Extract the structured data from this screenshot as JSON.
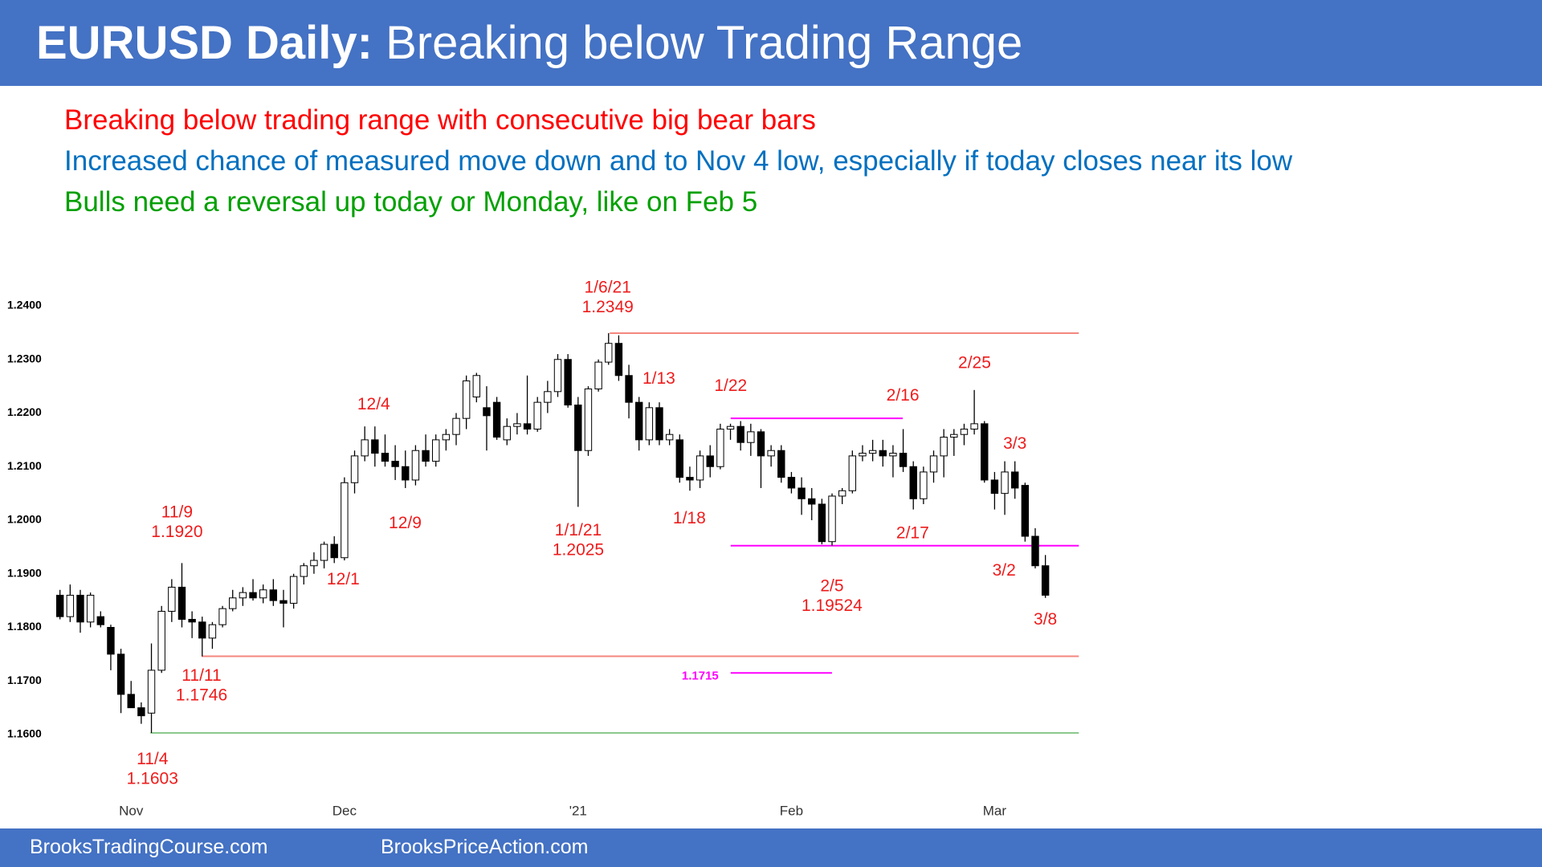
{
  "header": {
    "title_bold": "EURUSD Daily:",
    "title": "Breaking below Trading Range"
  },
  "bullets": [
    {
      "text": "Breaking below trading range with consecutive big bear bars",
      "color": "#ff0000"
    },
    {
      "text": "Increased chance of measured move down and to Nov 4 low, especially if today closes near its low",
      "color": "#0070c0"
    },
    {
      "text": "Bulls need a reversal up today or Monday, like on Feb 5",
      "color": "#00a000"
    }
  ],
  "footer": {
    "left": "BrooksTradingCourse.com",
    "right": "BrooksPriceAction.com"
  },
  "chart_data": {
    "type": "candlestick",
    "categories": [
      null,
      null,
      null,
      null,
      null,
      null,
      null,
      "Nov",
      null,
      null,
      null,
      null,
      null,
      null,
      null,
      null,
      null,
      null,
      null,
      null,
      null,
      null,
      null,
      null,
      null,
      null,
      null,
      null,
      "Dec",
      null,
      null,
      null,
      null,
      null,
      null,
      null,
      null,
      null,
      null,
      null,
      null,
      null,
      null,
      null,
      null,
      null,
      null,
      null,
      null,
      null,
      null,
      "'21",
      null,
      null,
      null,
      null,
      null,
      null,
      null,
      null,
      null,
      null,
      null,
      null,
      null,
      null,
      null,
      null,
      null,
      null,
      null,
      null,
      "Feb",
      null,
      null,
      null,
      null,
      null,
      null,
      null,
      null,
      null,
      null,
      null,
      null,
      null,
      null,
      null,
      null,
      null,
      null,
      null,
      "Mar",
      null,
      null,
      null,
      null,
      null
    ],
    "open": [
      1.186,
      1.182,
      1.186,
      1.181,
      1.182,
      1.18,
      1.175,
      1.1675,
      1.165,
      1.164,
      1.172,
      1.183,
      1.1875,
      1.1815,
      1.181,
      1.178,
      1.1805,
      1.1835,
      1.1855,
      1.1865,
      1.1855,
      1.187,
      1.185,
      1.1845,
      1.1895,
      1.1915,
      1.1925,
      1.1955,
      1.193,
      1.207,
      1.212,
      1.215,
      1.2125,
      1.211,
      1.21,
      1.2075,
      1.213,
      1.211,
      1.215,
      1.216,
      1.219,
      1.223,
      1.221,
      1.222,
      1.215,
      1.2175,
      1.218,
      1.217,
      1.222,
      1.224,
      1.23,
      1.2215,
      1.213,
      1.2245,
      1.2295,
      1.233,
      1.227,
      1.222,
      1.215,
      1.221,
      1.215,
      1.215,
      1.208,
      1.2075,
      1.212,
      1.21,
      1.217,
      1.2175,
      1.2145,
      1.2165,
      1.212,
      1.213,
      1.208,
      1.206,
      1.204,
      1.203,
      1.196,
      1.2045,
      1.2055,
      1.212,
      1.2125,
      1.213,
      1.212,
      1.2125,
      1.21,
      1.204,
      1.209,
      1.212,
      1.2155,
      1.216,
      1.217,
      1.218,
      1.2075,
      1.205,
      1.209,
      1.2065,
      1.197,
      1.1915
    ],
    "high": [
      1.187,
      1.188,
      1.187,
      1.1865,
      1.183,
      1.1805,
      1.176,
      1.17,
      1.166,
      1.177,
      1.184,
      1.189,
      1.192,
      1.183,
      1.182,
      1.181,
      1.184,
      1.187,
      1.1875,
      1.189,
      1.188,
      1.189,
      1.187,
      1.19,
      1.192,
      1.194,
      1.196,
      1.197,
      1.208,
      1.213,
      1.2175,
      1.2175,
      1.216,
      1.214,
      1.213,
      1.214,
      1.216,
      1.216,
      1.217,
      1.22,
      1.227,
      1.2275,
      1.225,
      1.223,
      1.219,
      1.22,
      1.227,
      1.223,
      1.226,
      1.231,
      1.231,
      1.223,
      1.225,
      1.23,
      1.2349,
      1.2345,
      1.229,
      1.223,
      1.222,
      1.222,
      1.217,
      1.216,
      1.21,
      1.213,
      1.214,
      1.218,
      1.218,
      1.2185,
      1.218,
      1.217,
      1.214,
      1.214,
      1.209,
      1.208,
      1.206,
      1.204,
      1.205,
      1.206,
      1.213,
      1.214,
      1.215,
      1.215,
      1.214,
      1.217,
      1.211,
      1.21,
      1.213,
      1.217,
      1.217,
      1.218,
      1.2243,
      1.2185,
      1.209,
      1.211,
      1.211,
      1.207,
      1.1985,
      1.1935
    ],
    "low": [
      1.1815,
      1.181,
      1.179,
      1.18,
      1.18,
      1.172,
      1.164,
      1.165,
      1.162,
      1.1603,
      1.1715,
      1.181,
      1.18,
      1.178,
      1.1746,
      1.176,
      1.18,
      1.183,
      1.184,
      1.185,
      1.1845,
      1.184,
      1.18,
      1.1835,
      1.188,
      1.19,
      1.191,
      1.192,
      1.1925,
      1.205,
      1.211,
      1.21,
      1.21,
      1.2075,
      1.206,
      1.2065,
      1.21,
      1.21,
      1.213,
      1.214,
      1.217,
      1.222,
      1.213,
      1.215,
      1.214,
      1.216,
      1.216,
      1.2165,
      1.22,
      1.223,
      1.221,
      1.2025,
      1.212,
      1.224,
      1.229,
      1.226,
      1.219,
      1.213,
      1.214,
      1.214,
      1.214,
      1.207,
      1.2055,
      1.206,
      1.208,
      1.2095,
      1.215,
      1.213,
      1.212,
      1.206,
      1.21,
      1.207,
      1.205,
      1.201,
      1.2,
      1.1955,
      1.19524,
      1.203,
      1.205,
      1.211,
      1.211,
      1.21,
      1.208,
      1.209,
      1.202,
      1.203,
      1.207,
      1.208,
      1.212,
      1.214,
      1.216,
      1.207,
      1.202,
      1.201,
      1.204,
      1.196,
      1.191,
      1.1855
    ],
    "close": [
      1.182,
      1.186,
      1.181,
      1.186,
      1.1805,
      1.175,
      1.1675,
      1.165,
      1.1635,
      1.172,
      1.183,
      1.1875,
      1.1815,
      1.181,
      1.178,
      1.1805,
      1.1835,
      1.1855,
      1.1865,
      1.1855,
      1.187,
      1.185,
      1.1845,
      1.1895,
      1.1915,
      1.1925,
      1.1955,
      1.193,
      1.207,
      1.212,
      1.215,
      1.2125,
      1.211,
      1.21,
      1.2075,
      1.213,
      1.211,
      1.215,
      1.216,
      1.219,
      1.226,
      1.227,
      1.2195,
      1.2155,
      1.2175,
      1.218,
      1.217,
      1.222,
      1.224,
      1.23,
      1.2215,
      1.213,
      1.2245,
      1.2295,
      1.233,
      1.227,
      1.222,
      1.215,
      1.221,
      1.215,
      1.216,
      1.208,
      1.2075,
      1.212,
      1.21,
      1.217,
      1.2175,
      1.2145,
      1.2165,
      1.212,
      1.213,
      1.208,
      1.206,
      1.204,
      1.203,
      1.196,
      1.2045,
      1.2055,
      1.212,
      1.2125,
      1.213,
      1.212,
      1.2125,
      1.21,
      1.204,
      1.209,
      1.212,
      1.2155,
      1.216,
      1.217,
      1.218,
      1.2075,
      1.205,
      1.209,
      1.206,
      1.197,
      1.1915,
      1.186
    ],
    "up_color": "#ffffff",
    "down_color": "#000000",
    "wick_color": "#000000",
    "ylim": [
      1.148,
      1.244
    ],
    "yticks": [
      {
        "value": 1.16,
        "label": "1.1600"
      },
      {
        "value": 1.17,
        "label": "1.1700"
      },
      {
        "value": 1.18,
        "label": "1.1800"
      },
      {
        "value": 1.19,
        "label": "1.1900"
      },
      {
        "value": 1.2,
        "label": "1.2000"
      },
      {
        "value": 1.21,
        "label": "1.2100"
      },
      {
        "value": 1.22,
        "label": "1.2200"
      },
      {
        "value": 1.23,
        "label": "1.2300"
      },
      {
        "value": 1.24,
        "label": "1.2400"
      }
    ],
    "grid": false,
    "annotation_color": "#ee1c1c",
    "annotations": [
      {
        "text": "11/4",
        "value": 1.1603
      },
      {
        "text": "11/9",
        "value": 1.192,
        "value_label": "1.1920"
      },
      {
        "text": "11/11",
        "value": 1.1746
      },
      {
        "text": "12/1"
      },
      {
        "text": "12/4"
      },
      {
        "text": "12/9"
      },
      {
        "text": "1/1/21",
        "value": 1.2025
      },
      {
        "text": "1/6/21",
        "value": 1.2349
      },
      {
        "text": "1/13"
      },
      {
        "text": "1/18"
      },
      {
        "text": "1/22"
      },
      {
        "text": "2/5",
        "value": 1.19524
      },
      {
        "text": "2/16"
      },
      {
        "text": "2/17"
      },
      {
        "text": "2/25"
      },
      {
        "text": "3/2"
      },
      {
        "text": "3/3"
      },
      {
        "text": "3/8"
      },
      {
        "value": 1.1715,
        "color": "#ff00ff"
      }
    ],
    "levels": [
      {
        "value": 1.2349,
        "color": "#f4877f"
      },
      {
        "value": 1.1746,
        "color": "#f4877f"
      },
      {
        "value": 1.1603,
        "color": "#8cc98c"
      },
      {
        "value": 1.219,
        "color": "#ff00ff"
      },
      {
        "value": 1.19524,
        "color": "#ff00ff"
      },
      {
        "value": 1.1715,
        "color": "#ff00ff"
      }
    ]
  }
}
